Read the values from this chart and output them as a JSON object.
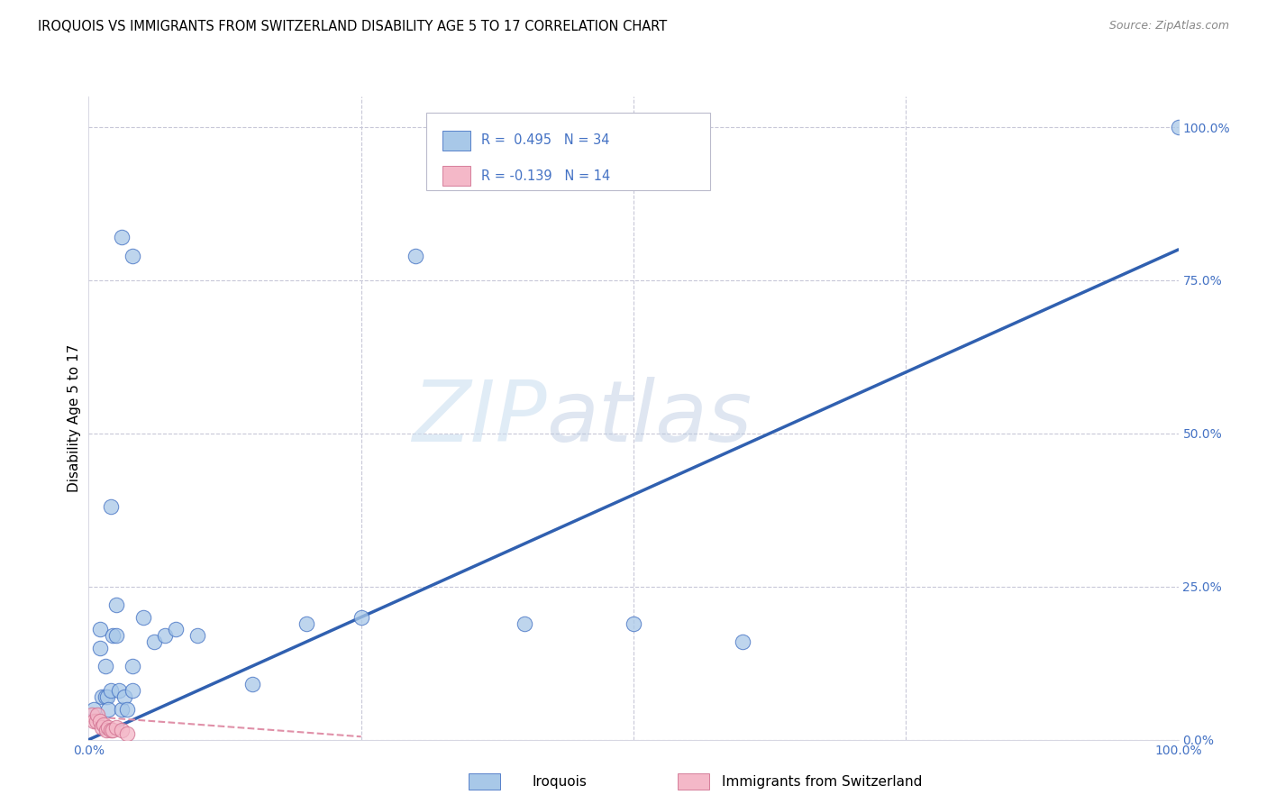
{
  "title": "IROQUOIS VS IMMIGRANTS FROM SWITZERLAND DISABILITY AGE 5 TO 17 CORRELATION CHART",
  "source": "Source: ZipAtlas.com",
  "ylabel": "Disability Age 5 to 17",
  "xmin": 0.0,
  "xmax": 1.0,
  "ymin": 0.0,
  "ymax": 1.05,
  "ytick_values": [
    0.0,
    0.25,
    0.5,
    0.75,
    1.0
  ],
  "ytick_labels": [
    "0.0%",
    "25.0%",
    "50.0%",
    "75.0%",
    "100.0%"
  ],
  "xtick_values": [
    0.0,
    1.0
  ],
  "xtick_labels": [
    "0.0%",
    "100.0%"
  ],
  "watermark_zip": "ZIP",
  "watermark_atlas": "atlas",
  "legend_r1": "R =  0.495",
  "legend_n1": "N = 34",
  "legend_r2": "R = -0.139",
  "legend_n2": "N = 14",
  "blue_fill": "#a8c8e8",
  "blue_edge": "#4472c4",
  "pink_fill": "#f4b8c8",
  "pink_edge": "#d07090",
  "blue_line_color": "#3060b0",
  "pink_line_color": "#e090a8",
  "tick_color": "#4472c4",
  "grid_color": "#c8c8d8",
  "iroquois_x": [
    0.005,
    0.01,
    0.01,
    0.012,
    0.015,
    0.015,
    0.017,
    0.018,
    0.02,
    0.022,
    0.025,
    0.025,
    0.028,
    0.03,
    0.033,
    0.035,
    0.04,
    0.04,
    0.05,
    0.06,
    0.07,
    0.08,
    0.1,
    0.15,
    0.2,
    0.25,
    0.4,
    0.5,
    0.6,
    0.3,
    0.03,
    0.04,
    1.0,
    0.02
  ],
  "iroquois_y": [
    0.05,
    0.15,
    0.18,
    0.07,
    0.07,
    0.12,
    0.07,
    0.05,
    0.08,
    0.17,
    0.17,
    0.22,
    0.08,
    0.05,
    0.07,
    0.05,
    0.12,
    0.08,
    0.2,
    0.16,
    0.17,
    0.18,
    0.17,
    0.09,
    0.19,
    0.2,
    0.19,
    0.19,
    0.16,
    0.79,
    0.82,
    0.79,
    1.0,
    0.38
  ],
  "swiss_x": [
    0.003,
    0.005,
    0.007,
    0.008,
    0.01,
    0.012,
    0.014,
    0.016,
    0.018,
    0.02,
    0.022,
    0.025,
    0.03,
    0.035
  ],
  "swiss_y": [
    0.04,
    0.03,
    0.03,
    0.04,
    0.03,
    0.02,
    0.025,
    0.015,
    0.02,
    0.015,
    0.015,
    0.02,
    0.015,
    0.01
  ],
  "blue_trend": [
    0.0,
    0.0,
    1.0,
    0.8
  ],
  "pink_trend": [
    0.0,
    0.038,
    0.25,
    0.005
  ],
  "bg_color": "#ffffff"
}
